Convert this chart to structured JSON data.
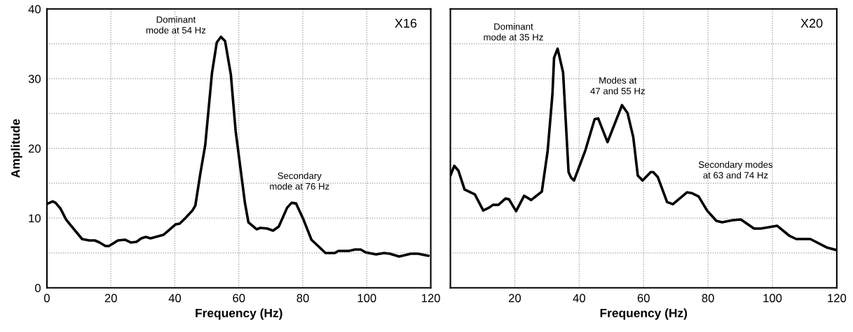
{
  "chart_data": [
    {
      "type": "line",
      "xlabel": "Frequency (Hz)",
      "ylabel": "Amplitude",
      "xlim": [
        0,
        120
      ],
      "ylim": [
        0,
        40
      ],
      "xticks": [
        0,
        20,
        40,
        60,
        80,
        100,
        120
      ],
      "yticks": [
        0,
        {
          "value": 5,
          "label": null
        },
        10,
        {
          "value": 15,
          "label": null
        },
        20,
        {
          "value": 25,
          "label": null
        },
        30,
        {
          "value": 35,
          "label": null
        },
        40
      ],
      "grid": true,
      "line_style": "solid",
      "marker": "none",
      "title": "X16",
      "annotations": [
        "Dominant\nmode at 54 Hz",
        "Secondary\nmode at 76 Hz"
      ],
      "series": [
        {
          "color": "#000000",
          "x": [
            0.3,
            1.8,
            2.7,
            4.2,
            6.0,
            7.4,
            11.0,
            13.2,
            15.0,
            16.5,
            18.3,
            19.4,
            22.2,
            24.4,
            26.2,
            28.0,
            29.5,
            30.9,
            32.4,
            36.4,
            38.2,
            40.2,
            41.5,
            43.3,
            45.5,
            46.4,
            48.0,
            49.5,
            51.6,
            53.1,
            54.4,
            55.7,
            57.5,
            59.0,
            61.9,
            63.0,
            65.6,
            66.7,
            68.9,
            70.7,
            72.5,
            75.1,
            76.5,
            77.9,
            80.2,
            82.7,
            87.1,
            90.0,
            91.1,
            94.4,
            96.3,
            98.1,
            99.6,
            102.9,
            105.4,
            107.2,
            110.1,
            113.8,
            116.0,
            119.3
          ],
          "values": [
            12.1,
            12.4,
            12.2,
            11.4,
            9.8,
            9.0,
            7.0,
            6.8,
            6.8,
            6.5,
            6.0,
            6.0,
            6.8,
            6.9,
            6.5,
            6.6,
            7.1,
            7.3,
            7.1,
            7.6,
            8.3,
            9.1,
            9.2,
            10.0,
            11.1,
            11.8,
            16.5,
            20.5,
            30.8,
            35.2,
            36.0,
            35.4,
            30.6,
            22.5,
            12.2,
            9.4,
            8.4,
            8.6,
            8.5,
            8.2,
            8.8,
            11.5,
            12.2,
            12.1,
            9.8,
            6.9,
            5.0,
            5.0,
            5.3,
            5.3,
            5.5,
            5.5,
            5.1,
            4.8,
            5.0,
            4.9,
            4.5,
            4.9,
            4.9,
            4.6
          ]
        }
      ]
    },
    {
      "type": "line",
      "xlabel": "Frequency (Hz)",
      "xlim": [
        0,
        120
      ],
      "ylim": [
        0,
        40
      ],
      "tick_labels": "x",
      "xticks": [
        20,
        40,
        60,
        80,
        100,
        120
      ],
      "yticks": [
        {
          "value": 5,
          "label": null
        },
        {
          "value": 10,
          "label": null
        },
        {
          "value": 15,
          "label": null
        },
        {
          "value": 20,
          "label": null
        },
        {
          "value": 25,
          "label": null
        },
        {
          "value": 30,
          "label": null
        },
        {
          "value": 35,
          "label": null
        }
      ],
      "grid": true,
      "line_style": "solid",
      "marker": "none",
      "title": "X20",
      "annotations": [
        "Dominant\nmode at 35 Hz",
        "Modes at\n47 and 55 Hz",
        "Secondary modes\nat 63 and 74 Hz"
      ],
      "series": [
        {
          "color": "#000000",
          "x": [
            0,
            1.2,
            2.5,
            4.4,
            7.6,
            10.2,
            12.0,
            13.2,
            14.9,
            17.1,
            18.2,
            20.4,
            22.9,
            25.1,
            28.4,
            30.2,
            31.7,
            32.2,
            33.3,
            35.0,
            36.7,
            37.5,
            38.4,
            41.9,
            44.8,
            45.9,
            48.8,
            53.3,
            55.0,
            56.8,
            58.2,
            59.7,
            62.2,
            63.0,
            64.4,
            67.3,
            69.1,
            73.5,
            74.9,
            77.1,
            79.7,
            82.6,
            84.4,
            87.7,
            90.2,
            94.3,
            96.4,
            101.5,
            105.2,
            107.4,
            111.8,
            116.8,
            120
          ],
          "values": [
            16.1,
            17.5,
            16.8,
            14.1,
            13.4,
            11.1,
            11.5,
            11.9,
            11.9,
            12.8,
            12.7,
            11.0,
            13.2,
            12.6,
            13.8,
            19.6,
            27.8,
            33.0,
            34.3,
            30.9,
            16.6,
            15.8,
            15.4,
            19.7,
            24.2,
            24.3,
            20.9,
            26.2,
            25.1,
            21.6,
            16.1,
            15.4,
            16.6,
            16.6,
            15.9,
            12.3,
            12.0,
            13.7,
            13.6,
            13.1,
            11.1,
            9.6,
            9.4,
            9.7,
            9.8,
            8.5,
            8.5,
            8.9,
            7.5,
            7.0,
            7.0,
            5.8,
            5.4
          ]
        }
      ]
    }
  ]
}
